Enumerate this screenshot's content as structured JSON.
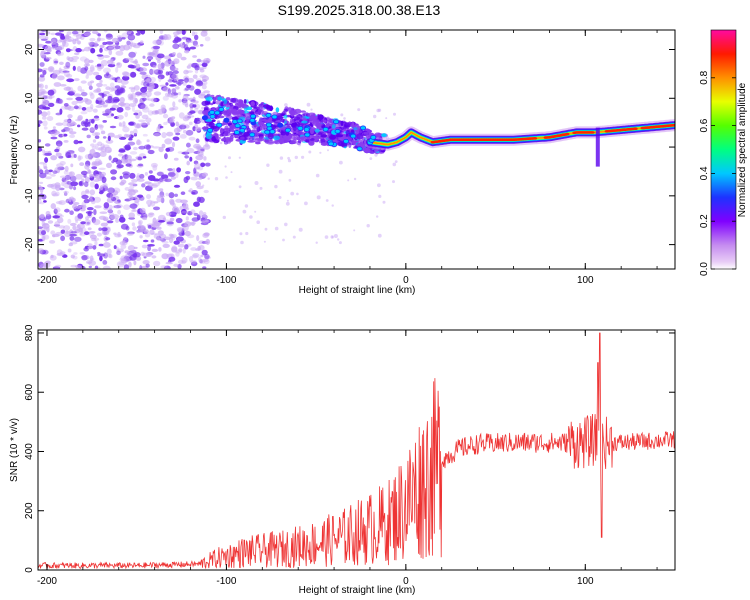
{
  "title": "S199.2025.318.00.38.E13",
  "colors": {
    "snr_line": "#ee3333",
    "ridge": "#ff2200",
    "noise": "#7733ee",
    "scatter_light": "#c9a8f5"
  },
  "chart_data": [
    {
      "type": "heatmap",
      "name": "spectrogram",
      "xlabel": "Height of straight line (km)",
      "ylabel": "Frequency (Hz)",
      "xlim": [
        -205,
        150
      ],
      "ylim": [
        -25,
        24
      ],
      "xticks": [
        -200,
        -100,
        0,
        100
      ],
      "yticks": [
        -20,
        -10,
        0,
        10,
        20
      ],
      "grid": false,
      "ridge": {
        "x": [
          -112,
          -100,
          -85,
          -70,
          -55,
          -40,
          -30,
          -20,
          -10,
          -5,
          0,
          3,
          8,
          15,
          25,
          40,
          60,
          80,
          95,
          105,
          120,
          135,
          150
        ],
        "y": [
          6,
          5.5,
          5,
          4.5,
          4,
          3,
          2.5,
          1,
          0.5,
          1,
          2,
          3,
          2,
          1,
          1.5,
          1.5,
          1.5,
          2,
          3,
          3,
          3.5,
          4,
          4.5
        ],
        "amplitude": [
          0.35,
          0.3,
          0.3,
          0.35,
          0.35,
          0.4,
          0.35,
          0.5,
          0.6,
          0.7,
          0.8,
          0.85,
          0.8,
          0.9,
          0.95,
          0.95,
          0.95,
          0.9,
          0.9,
          0.85,
          0.9,
          0.9,
          0.9
        ]
      },
      "colorbar": {
        "label": "Normalized spectral amplitude",
        "range": [
          0,
          1
        ],
        "ticks": [
          0.0,
          0.2,
          0.4,
          0.6,
          0.8
        ],
        "tick_labels": [
          "0.0",
          "0.2",
          "0.4",
          "0.6",
          "0.8"
        ]
      }
    },
    {
      "type": "line",
      "name": "snr",
      "xlabel": "Height of straight line (km)",
      "ylabel": "SNR (10 * v/v)",
      "xlim": [
        -205,
        150
      ],
      "ylim": [
        0,
        810
      ],
      "xticks": [
        -200,
        -100,
        0,
        100
      ],
      "yticks": [
        0,
        200,
        400,
        600,
        800
      ],
      "grid": false,
      "trend": {
        "x": [
          -205,
          -150,
          -115,
          -105,
          -90,
          -70,
          -50,
          -35,
          -20,
          -10,
          0,
          10,
          20,
          30,
          40,
          60,
          80,
          100,
          105,
          108,
          110,
          112,
          120,
          150
        ],
        "y": [
          15,
          15,
          20,
          40,
          60,
          70,
          90,
          110,
          140,
          160,
          220,
          300,
          370,
          410,
          425,
          430,
          430,
          430,
          440,
          430,
          430,
          430,
          430,
          440
        ]
      },
      "spikes": [
        {
          "x": 108,
          "y": 800
        },
        {
          "x": 107,
          "y": 700
        },
        {
          "x": 109,
          "y": 110
        }
      ]
    }
  ]
}
